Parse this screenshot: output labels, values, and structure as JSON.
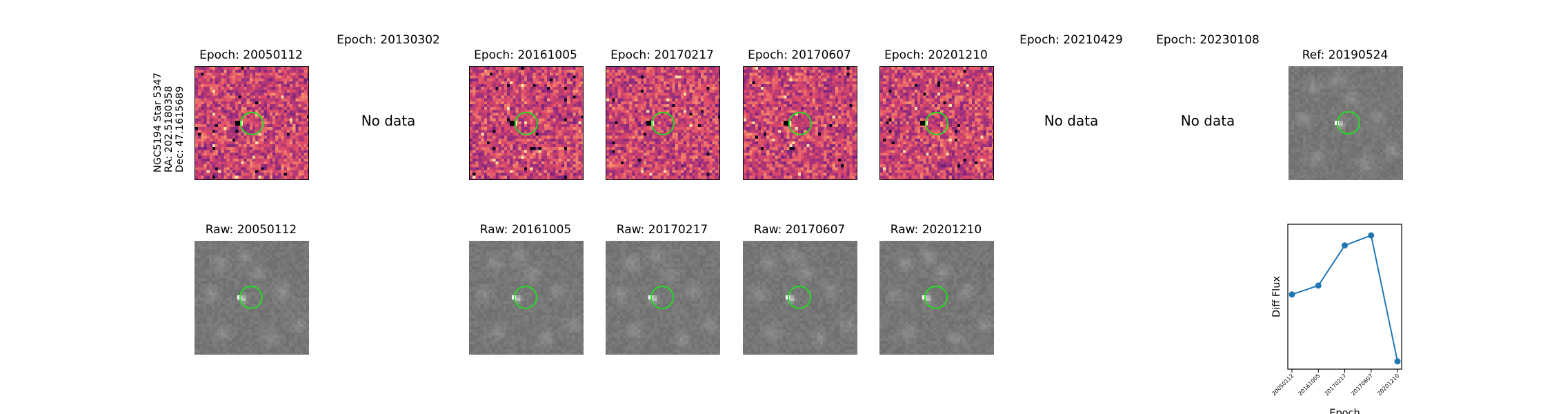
{
  "object": {
    "name": "NGC5194 Star 5347",
    "ra": "RA: 202.5180358",
    "dec": "Dec: 47.1615689"
  },
  "no_data_text": "No data",
  "epochs": [
    {
      "diff_title": "Epoch: 20050112",
      "raw_title": "Raw: 20050112",
      "has_data": true
    },
    {
      "diff_title": "Epoch: 20130302",
      "raw_title": "",
      "has_data": false
    },
    {
      "diff_title": "Epoch: 20161005",
      "raw_title": "Raw: 20161005",
      "has_data": true
    },
    {
      "diff_title": "Epoch: 20170217",
      "raw_title": "Raw: 20170217",
      "has_data": true
    },
    {
      "diff_title": "Epoch: 20170607",
      "raw_title": "Raw: 20170607",
      "has_data": true
    },
    {
      "diff_title": "Epoch: 20201210",
      "raw_title": "Raw: 20201210",
      "has_data": true
    },
    {
      "diff_title": "Epoch: 20210429",
      "raw_title": "",
      "has_data": false
    },
    {
      "diff_title": "Epoch: 20230108",
      "raw_title": "",
      "has_data": false
    }
  ],
  "reference": {
    "title": "Ref: 20190524"
  },
  "colors": {
    "marker_circle": "#22dd22",
    "series": "#1f77b4",
    "diff_cmap": "magma",
    "raw_cmap": "gray"
  },
  "chart_data": {
    "type": "line",
    "xlabel": "Epoch",
    "ylabel": "Diff Flux",
    "categories": [
      "20050112",
      "20161005",
      "20170217",
      "20170607",
      "20201210"
    ],
    "x_tick_labels": [
      "20050112",
      "20161005",
      "20170217",
      "20170607",
      "20201210"
    ],
    "values": [
      0.42,
      0.5,
      0.86,
      0.95,
      -0.18
    ],
    "ylim": [
      -0.25,
      1.05
    ],
    "grid": false,
    "y_ticks_shown": false
  }
}
